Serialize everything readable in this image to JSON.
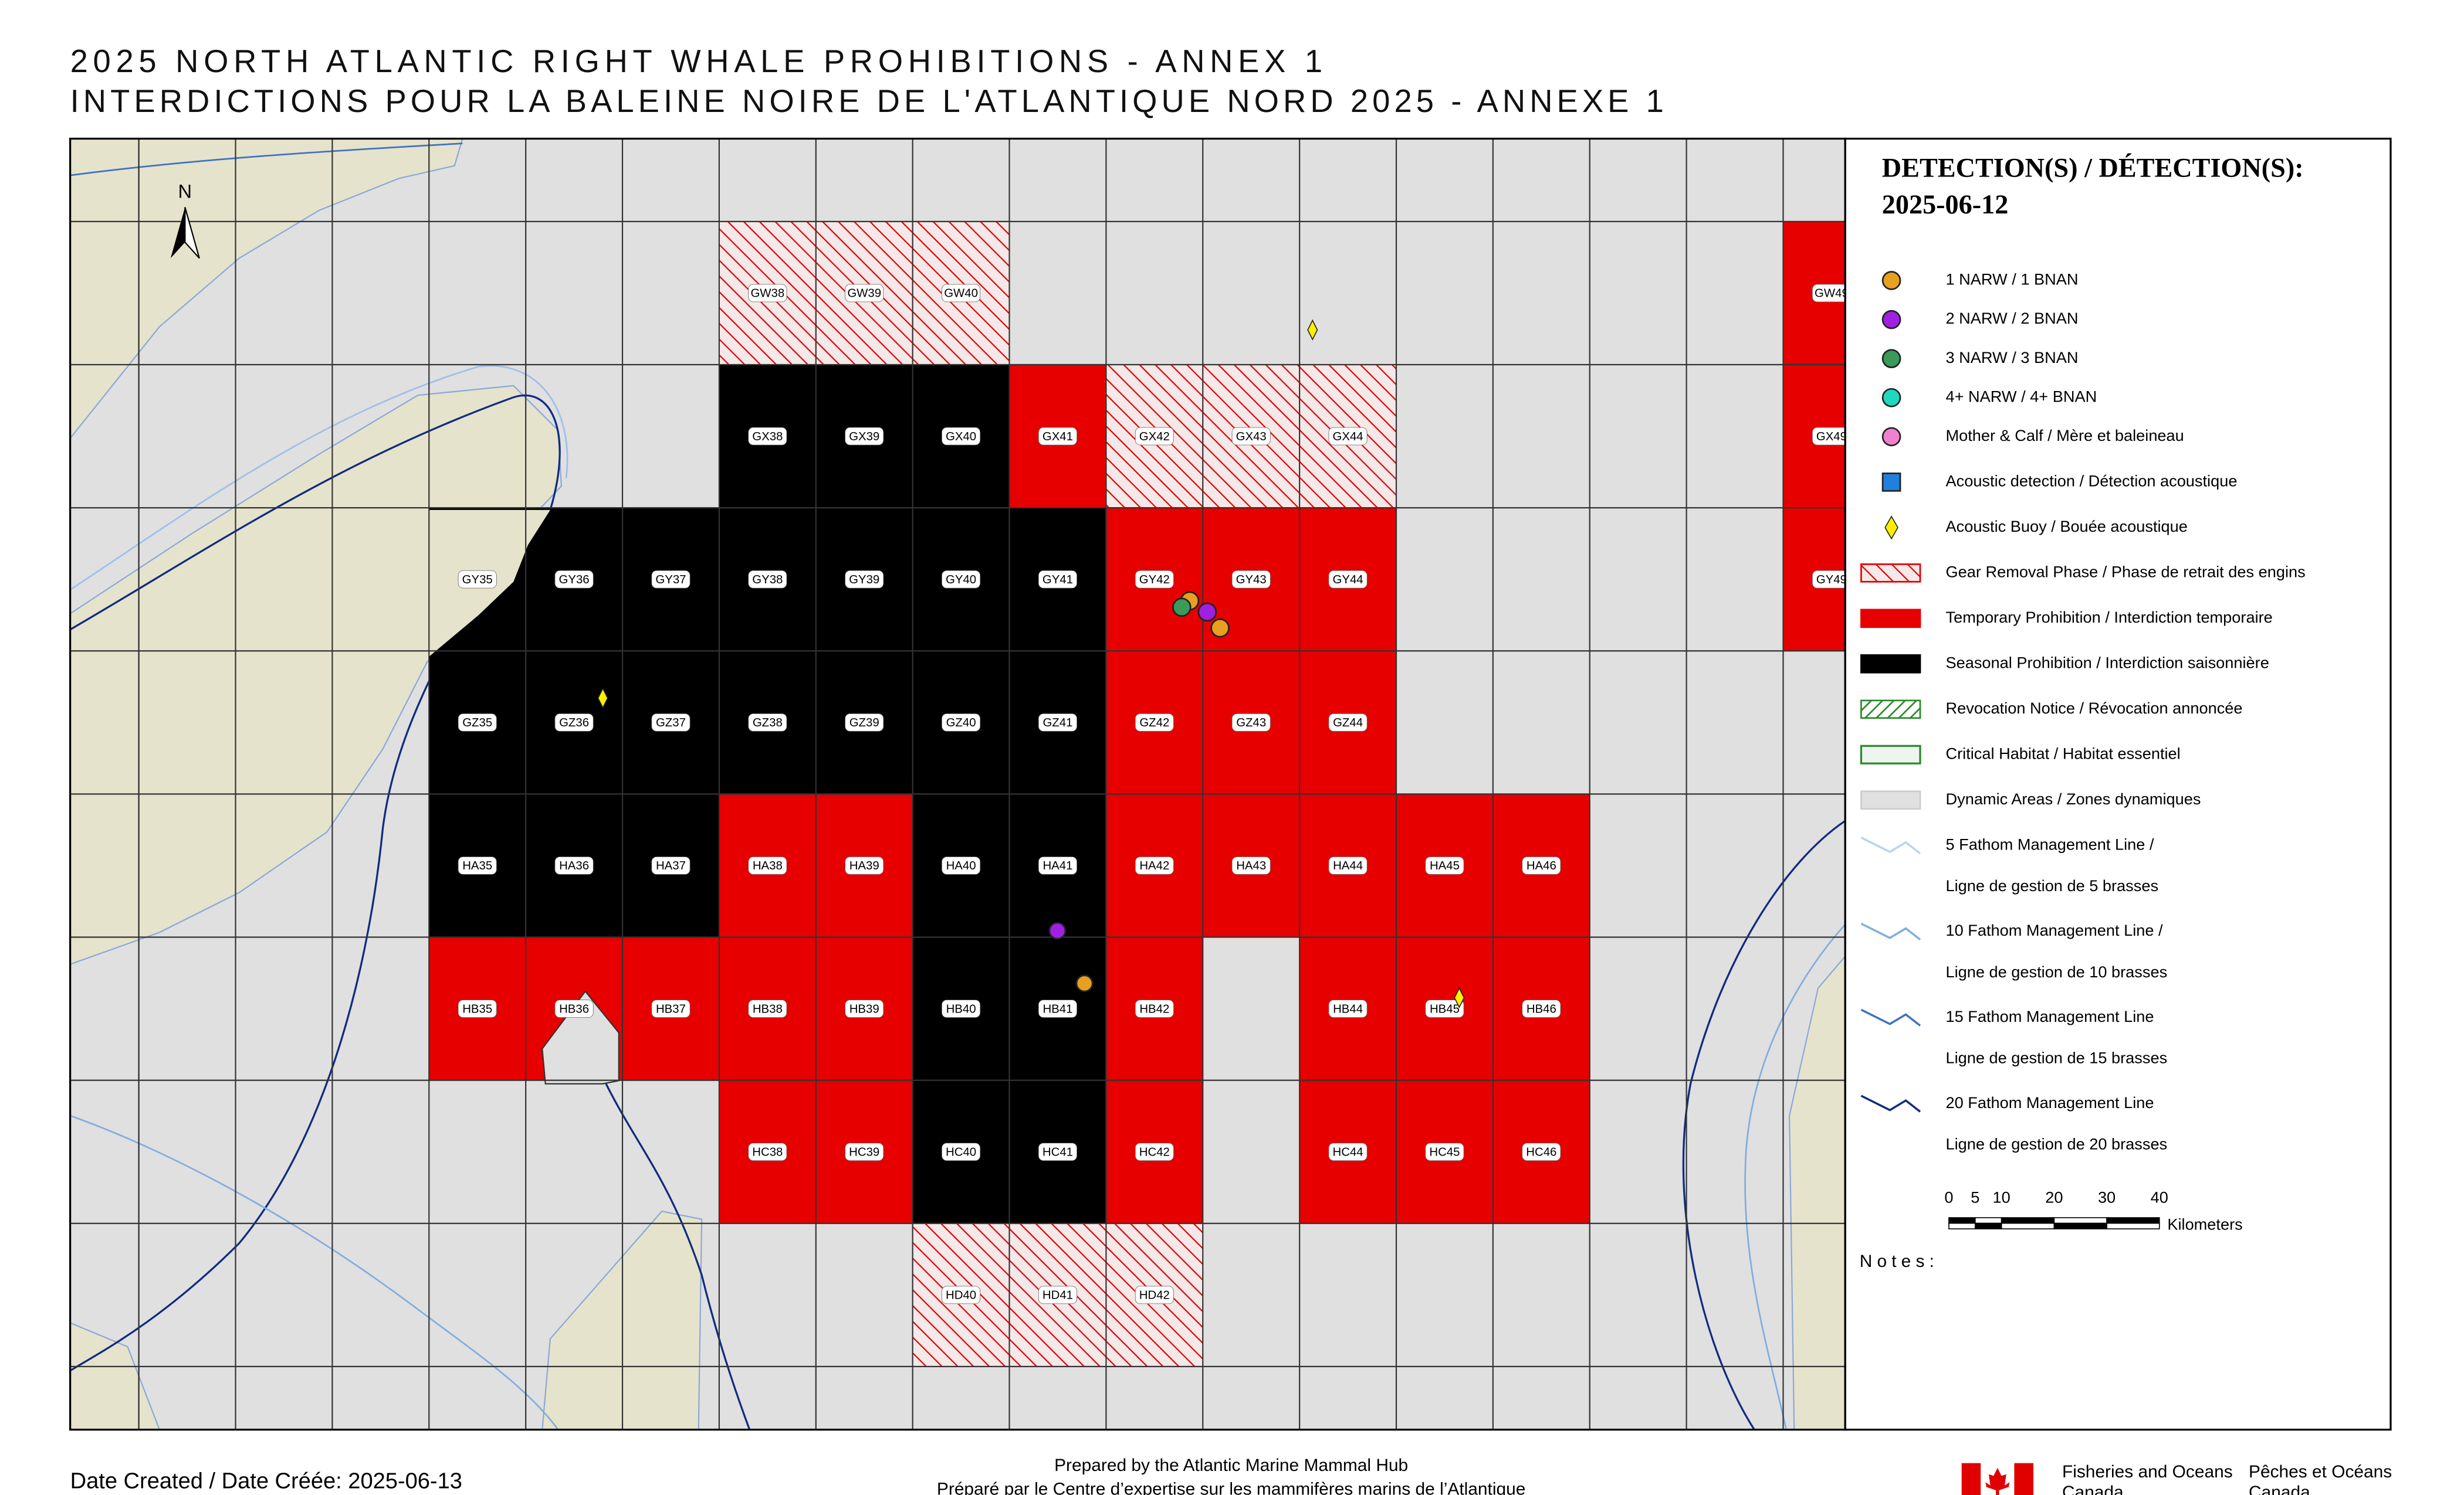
{
  "header": {
    "title": "2025 NORTH ATLANTIC RIGHT WHALE PROHIBITIONS - ANNEX 1",
    "subtitle": "INTERDICTIONS POUR LA BALEINE NOIRE DE L'ATLANTIQUE NORD 2025 - ANNEXE 1"
  },
  "map": {
    "north": "N",
    "cells": [
      {
        "label": "GW38",
        "status": "gear"
      },
      {
        "label": "GW39",
        "status": "gear"
      },
      {
        "label": "GW40",
        "status": "gear"
      },
      {
        "label": "GW49",
        "status": "temporary"
      },
      {
        "label": "GX38",
        "status": "seasonal"
      },
      {
        "label": "GX39",
        "status": "seasonal"
      },
      {
        "label": "GX40",
        "status": "seasonal"
      },
      {
        "label": "GX41",
        "status": "temporary"
      },
      {
        "label": "GX42",
        "status": "gear"
      },
      {
        "label": "GX43",
        "status": "gear"
      },
      {
        "label": "GX44",
        "status": "gear"
      },
      {
        "label": "GX49",
        "status": "temporary"
      },
      {
        "label": "GY35",
        "status": "seasonal"
      },
      {
        "label": "GY36",
        "status": "seasonal"
      },
      {
        "label": "GY37",
        "status": "seasonal"
      },
      {
        "label": "GY38",
        "status": "seasonal"
      },
      {
        "label": "GY39",
        "status": "seasonal"
      },
      {
        "label": "GY40",
        "status": "seasonal"
      },
      {
        "label": "GY41",
        "status": "seasonal"
      },
      {
        "label": "GY42",
        "status": "temporary"
      },
      {
        "label": "GY43",
        "status": "temporary"
      },
      {
        "label": "GY44",
        "status": "temporary"
      },
      {
        "label": "GY49",
        "status": "temporary"
      },
      {
        "label": "GZ35",
        "status": "seasonal"
      },
      {
        "label": "GZ36",
        "status": "seasonal"
      },
      {
        "label": "GZ37",
        "status": "seasonal"
      },
      {
        "label": "GZ38",
        "status": "seasonal"
      },
      {
        "label": "GZ39",
        "status": "seasonal"
      },
      {
        "label": "GZ40",
        "status": "seasonal"
      },
      {
        "label": "GZ41",
        "status": "seasonal"
      },
      {
        "label": "GZ42",
        "status": "temporary"
      },
      {
        "label": "GZ43",
        "status": "temporary"
      },
      {
        "label": "GZ44",
        "status": "temporary"
      },
      {
        "label": "HA35",
        "status": "seasonal"
      },
      {
        "label": "HA36",
        "status": "seasonal"
      },
      {
        "label": "HA37",
        "status": "seasonal"
      },
      {
        "label": "HA38",
        "status": "temporary"
      },
      {
        "label": "HA39",
        "status": "temporary"
      },
      {
        "label": "HA40",
        "status": "seasonal"
      },
      {
        "label": "HA41",
        "status": "seasonal"
      },
      {
        "label": "HA42",
        "status": "temporary"
      },
      {
        "label": "HA43",
        "status": "temporary"
      },
      {
        "label": "HA44",
        "status": "temporary"
      },
      {
        "label": "HA45",
        "status": "temporary"
      },
      {
        "label": "HA46",
        "status": "temporary"
      },
      {
        "label": "HB35",
        "status": "temporary"
      },
      {
        "label": "HB36",
        "status": "temporary"
      },
      {
        "label": "HB37",
        "status": "temporary"
      },
      {
        "label": "HB38",
        "status": "temporary"
      },
      {
        "label": "HB39",
        "status": "temporary"
      },
      {
        "label": "HB40",
        "status": "seasonal"
      },
      {
        "label": "HB41",
        "status": "seasonal"
      },
      {
        "label": "HB42",
        "status": "temporary"
      },
      {
        "label": "HB44",
        "status": "temporary"
      },
      {
        "label": "HB45",
        "status": "temporary"
      },
      {
        "label": "HB46",
        "status": "temporary"
      },
      {
        "label": "HC38",
        "status": "temporary"
      },
      {
        "label": "HC39",
        "status": "temporary"
      },
      {
        "label": "HC40",
        "status": "seasonal"
      },
      {
        "label": "HC41",
        "status": "seasonal"
      },
      {
        "label": "HC42",
        "status": "temporary"
      },
      {
        "label": "HC44",
        "status": "temporary"
      },
      {
        "label": "HC45",
        "status": "temporary"
      },
      {
        "label": "HC46",
        "status": "temporary"
      },
      {
        "label": "HD40",
        "status": "gear"
      },
      {
        "label": "HD41",
        "status": "gear"
      },
      {
        "label": "HD42",
        "status": "gear"
      }
    ]
  },
  "legend": {
    "title": "DETECTION(S) / DÉTECTION(S):",
    "date": "2025-06-12",
    "items": [
      {
        "symbol": "dot",
        "color": "#e8a020",
        "label": "1 NARW / 1 BNAN"
      },
      {
        "symbol": "dot",
        "color": "#a020e0",
        "label": "2 NARW / 2 BNAN"
      },
      {
        "symbol": "dot",
        "color": "#3a9a5a",
        "label": "3 NARW / 3 BNAN"
      },
      {
        "symbol": "dot",
        "color": "#20d8c0",
        "label": "4+ NARW / 4+ BNAN"
      },
      {
        "symbol": "dot",
        "color": "#f080d0",
        "label": "Mother & Calf / Mère et baleineau"
      },
      {
        "symbol": "square",
        "color": "#2080e0",
        "label": "Acoustic detection / Détection acoustique"
      },
      {
        "symbol": "diamond",
        "color": "#ffee00",
        "label": "Acoustic Buoy / Bouée acoustique"
      },
      {
        "symbol": "hatch",
        "color": "#e00000",
        "label": "Gear Removal Phase / Phase de retrait des engins"
      },
      {
        "symbol": "box",
        "color": "#e60000",
        "label": "Temporary Prohibition / Interdiction temporaire"
      },
      {
        "symbol": "box",
        "color": "#000000",
        "label": "Seasonal Prohibition / Interdiction saisonnière"
      },
      {
        "symbol": "hatch",
        "color": "#2a8a2a",
        "label": "Revocation Notice / Révocation annoncée"
      },
      {
        "symbol": "outline",
        "color": "#2a8a2a",
        "label": "Critical Habitat / Habitat essentiel"
      },
      {
        "symbol": "box",
        "color": "#e0e0e0",
        "label": "Dynamic Areas / Zones dynamiques"
      },
      {
        "symbol": "line",
        "color": "#b8d4f0",
        "label": "5 Fathom Management Line /",
        "label2": "Ligne de gestion de 5 brasses"
      },
      {
        "symbol": "line",
        "color": "#80aede",
        "label": "10 Fathom Management Line /",
        "label2": "Ligne de gestion de 10 brasses"
      },
      {
        "symbol": "line",
        "color": "#3f72c0",
        "label": "15 Fathom Management Line",
        "label2": "Ligne de gestion de 15 brasses"
      },
      {
        "symbol": "line",
        "color": "#102c80",
        "label": "20 Fathom Management Line",
        "label2": "Ligne de gestion de 20 brasses"
      }
    ],
    "scale": {
      "ticks": [
        0,
        5,
        10,
        20,
        30,
        40
      ],
      "unit": "Kilometers"
    },
    "notes": "Notes:"
  },
  "footer": {
    "date": "Date Created / Date Créée: 2025-06-13",
    "prepared": "Prepared by the Atlantic Marine Mammal Hub",
    "prepared_fr": "Préparé par le Centre d’expertise sur les mammifères marins de l’Atlantique",
    "dept_en": "Fisheries and Oceans",
    "country_en": "Canada",
    "dept_fr": "Pêches et Océans",
    "country_fr": "Canada"
  }
}
